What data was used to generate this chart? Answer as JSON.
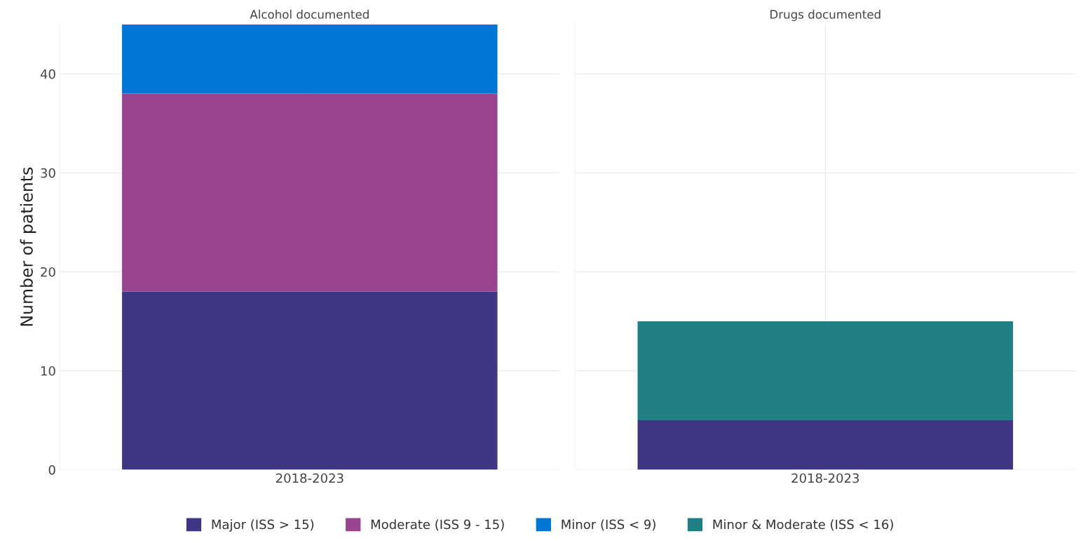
{
  "chart_data": [
    {
      "type": "bar",
      "title": "Alcohol documented",
      "ylabel": "Number of patients",
      "categories": [
        "2018-2023"
      ],
      "stacked": true,
      "ylim": [
        0,
        45
      ],
      "yticks": [
        0,
        10,
        20,
        30,
        40
      ],
      "grid": true,
      "legend": "bottom",
      "series": [
        {
          "name": "Major (ISS > 15)",
          "color": "#3f3683",
          "values": [
            18
          ]
        },
        {
          "name": "Moderate (ISS 9 - 15)",
          "color": "#99448f",
          "values": [
            20
          ]
        },
        {
          "name": "Minor (ISS < 9)",
          "color": "#0077d4",
          "values": [
            7
          ]
        }
      ]
    },
    {
      "type": "bar",
      "title": "Drugs documented",
      "categories": [
        "2018-2023"
      ],
      "stacked": true,
      "ylim": [
        0,
        45
      ],
      "yticks": [
        0,
        10,
        20,
        30,
        40
      ],
      "grid": true,
      "legend": "bottom",
      "tick_labels": "x",
      "series": [
        {
          "name": "Major (ISS > 15)",
          "color": "#3f3683",
          "values": [
            5
          ]
        },
        {
          "name": "Minor & Moderate (ISS < 16)",
          "color": "#1f7f83",
          "values": [
            10
          ]
        }
      ]
    }
  ]
}
